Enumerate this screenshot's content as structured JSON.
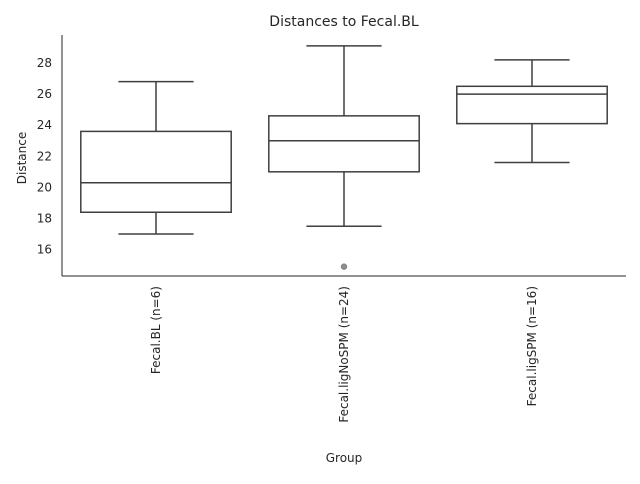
{
  "chart_data": {
    "type": "box",
    "title": "Distances to Fecal.BL",
    "xlabel": "Group",
    "ylabel": "Distance",
    "ylim": [
      14.3,
      29.8
    ],
    "yticks": [
      16,
      18,
      20,
      22,
      24,
      26,
      28
    ],
    "grid": false,
    "categories": [
      "Fecal.BL (n=6)",
      "Fecal.ligNoSPM (n=24)",
      "Fecal.ligSPM (n=16)"
    ],
    "boxes": [
      {
        "category": "Fecal.BL (n=6)",
        "whisker_low": 17.0,
        "q1": 18.4,
        "median": 20.3,
        "q3": 23.6,
        "whisker_high": 26.8,
        "outliers": []
      },
      {
        "category": "Fecal.ligNoSPM (n=24)",
        "whisker_low": 17.5,
        "q1": 21.0,
        "median": 23.0,
        "q3": 24.6,
        "whisker_high": 29.1,
        "outliers": [
          14.9
        ]
      },
      {
        "category": "Fecal.ligSPM (n=16)",
        "whisker_low": 21.6,
        "q1": 24.1,
        "median": 26.0,
        "q3": 26.5,
        "whisker_high": 28.2,
        "outliers": []
      }
    ],
    "colors": {
      "box_edge": "#3f3f3f",
      "outlier": "#8c8c8c",
      "text": "#262626",
      "axis": "#262626"
    }
  }
}
